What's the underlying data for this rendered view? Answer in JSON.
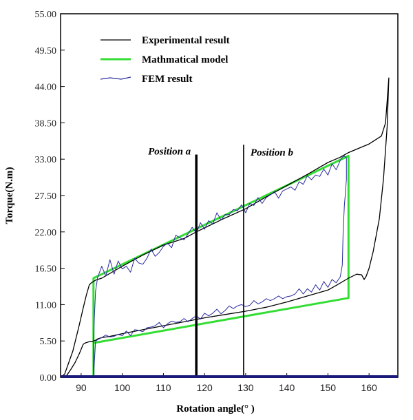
{
  "chart_data": {
    "type": "line",
    "title": "",
    "xlabel": "Rotation angle(° )",
    "ylabel": "Torque(N.m)",
    "xlim": [
      85,
      167
    ],
    "ylim": [
      0,
      55
    ],
    "xticks": [
      "90",
      "100",
      "110",
      "120",
      "130",
      "140",
      "150",
      "160"
    ],
    "yticks": [
      "0.00",
      "5.50",
      "11.00",
      "16.50",
      "22.00",
      "27.50",
      "33.00",
      "38.50",
      "44.00",
      "49.50",
      "55.00"
    ],
    "grid": false,
    "legend": {
      "position": "top-left",
      "entries": [
        "Experimental result",
        "Mathmatical model",
        "FEM result"
      ]
    },
    "colors": {
      "experimental": "#000000",
      "model": "#33dd33",
      "fem": "#2a2aa0",
      "axis_base": "#1a1a7a"
    },
    "annotations": [
      {
        "label": "Position a",
        "x": 118
      },
      {
        "label": "Position b",
        "x": 129.5
      }
    ],
    "series": [
      {
        "name": "Experimental result",
        "style": "experimental",
        "x": [
          85,
          86,
          88,
          89.5,
          90.5,
          91.3,
          92,
          92.5,
          93,
          93.5,
          95,
          100,
          105,
          110,
          115,
          118,
          120,
          125,
          130,
          135,
          140,
          145,
          150,
          153,
          155,
          160,
          163,
          164,
          164.8,
          164.4,
          163.5,
          162.5,
          161,
          160,
          159.3,
          158.8,
          158.2,
          157,
          155,
          152,
          150,
          145,
          140,
          135,
          130,
          125,
          120,
          115,
          110,
          105,
          100,
          97,
          95,
          94,
          93.5,
          93,
          92.5,
          92,
          91,
          90.5,
          89.5,
          88.5,
          87.5,
          86.5,
          86
        ],
        "y": [
          0,
          0.5,
          4,
          7.8,
          10.5,
          12.5,
          14,
          14.3,
          14.5,
          14.7,
          15,
          16.8,
          18.5,
          20,
          21,
          22,
          22.6,
          24.1,
          25.5,
          27.3,
          29,
          30.7,
          32.5,
          33.3,
          34,
          35.3,
          36.5,
          38.5,
          45.3,
          38,
          30,
          24,
          19,
          16.5,
          15.3,
          14.8,
          15.5,
          15.6,
          15,
          13.9,
          13.2,
          12.3,
          11.4,
          10.6,
          10,
          9.5,
          9,
          8.4,
          7.8,
          7.2,
          6.6,
          6.2,
          6,
          5.8,
          5.6,
          5.5,
          5.4,
          5.4,
          5.2,
          5,
          3.5,
          2.2,
          1.2,
          0.3,
          0
        ]
      },
      {
        "name": "Mathmatical model",
        "style": "model",
        "x": [
          93,
          93,
          155,
          155,
          93,
          93
        ],
        "y": [
          0,
          15,
          33.5,
          12,
          5.2,
          0
        ]
      },
      {
        "name": "FEM result",
        "style": "fem",
        "x": [
          93,
          93,
          93.5,
          94,
          95,
          96,
          97,
          98,
          99,
          100,
          101,
          102,
          103,
          104,
          105,
          106,
          107,
          108,
          109,
          110,
          111,
          112,
          113,
          114,
          115,
          116,
          117,
          118,
          119,
          120,
          121,
          122,
          123,
          124,
          125,
          126,
          127,
          128,
          129,
          130,
          131,
          132,
          133,
          134,
          135,
          136,
          137,
          138,
          139,
          140,
          141,
          142,
          143,
          144,
          145,
          146,
          147,
          148,
          149,
          150,
          151,
          152,
          153,
          153.5,
          154,
          154.5,
          154.5,
          154.2,
          154,
          153.7,
          153.5,
          153,
          152,
          151,
          150,
          149,
          148,
          147,
          146,
          145,
          144,
          143,
          142,
          141,
          140,
          139,
          138,
          137,
          136,
          135,
          134,
          133,
          132,
          131,
          130,
          129,
          128,
          127,
          126,
          125,
          124,
          123,
          122,
          121,
          120,
          119,
          118,
          117,
          116,
          115,
          114,
          113,
          112,
          111,
          110,
          109,
          108,
          107,
          106,
          105,
          104,
          103,
          102,
          101,
          100,
          99,
          98,
          97,
          96,
          95,
          94,
          93.5,
          93
        ],
        "y": [
          0,
          6,
          13,
          15.1,
          16.8,
          15.3,
          17.8,
          15.6,
          17.6,
          16.4,
          16.8,
          15.9,
          18,
          17.3,
          17.1,
          18,
          19.4,
          18.3,
          18.9,
          19.8,
          20.3,
          19.6,
          21.5,
          21.1,
          20.8,
          21.7,
          22.7,
          21.8,
          23.4,
          22.4,
          23.7,
          23.2,
          24.9,
          23.8,
          24.6,
          24.6,
          25.4,
          25.2,
          26.1,
          24.9,
          26.3,
          26,
          27.2,
          26.3,
          27.2,
          27.6,
          28.1,
          27.1,
          28.2,
          28.5,
          28.8,
          28.3,
          29.6,
          29.2,
          30.5,
          29.9,
          30.6,
          30.4,
          31.5,
          30.6,
          32.3,
          31.4,
          32.8,
          33.3,
          33.5,
          33.2,
          30,
          27.5,
          26,
          22,
          17,
          15.2,
          14.3,
          14.8,
          13.6,
          14.5,
          13.2,
          14,
          12.9,
          13.4,
          12.6,
          13.4,
          12.6,
          12.3,
          12.2,
          11.9,
          12.3,
          11.9,
          11.6,
          11.9,
          11.4,
          11.1,
          11.6,
          10.9,
          10.7,
          11,
          10.8,
          10.4,
          10.8,
          10.1,
          9.6,
          10.3,
          9.7,
          9.3,
          9.7,
          8.8,
          9.3,
          8.9,
          8.4,
          8.9,
          8.4,
          8.3,
          8.5,
          8.1,
          7.5,
          8.3,
          7.8,
          7.6,
          7.5,
          6.9,
          7.1,
          7.2,
          6.3,
          7,
          6.3,
          6.5,
          6.2,
          6.1,
          6.4,
          6,
          5.7,
          5.4,
          0
        ]
      }
    ]
  }
}
